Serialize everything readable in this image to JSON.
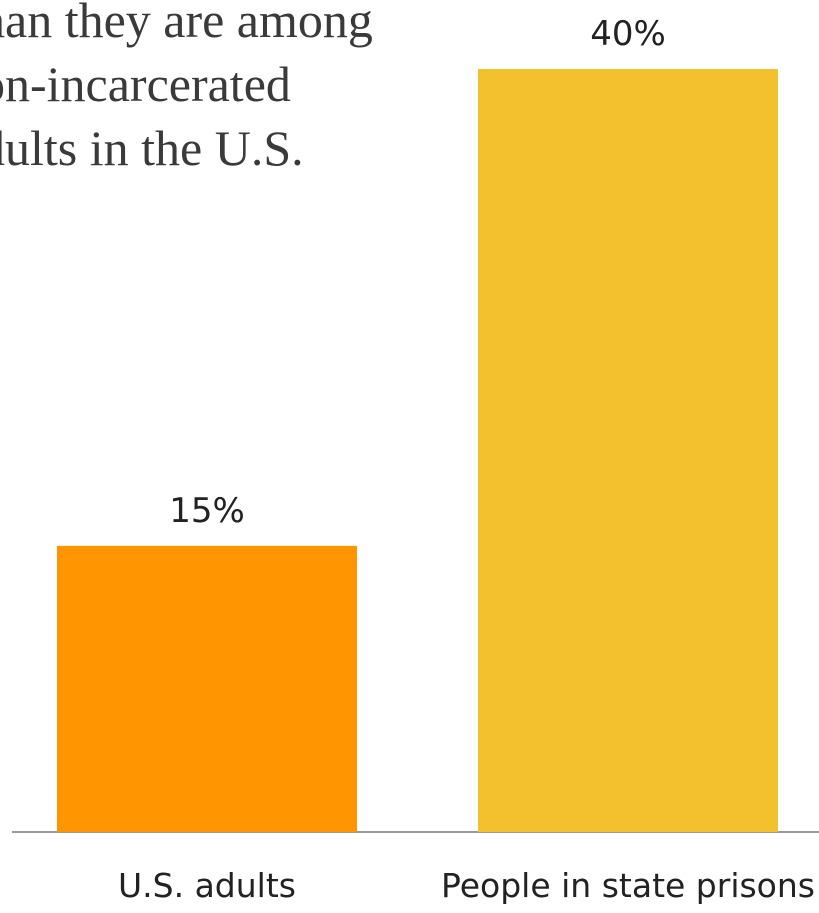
{
  "intro": {
    "lines": [
      "han they are among",
      "on-incarcerated",
      "dults in the U.S."
    ]
  },
  "chart_data": {
    "type": "bar",
    "categories": [
      "U.S. adults",
      "People in state prisons"
    ],
    "values": [
      15,
      40
    ],
    "value_labels": [
      "15%",
      "40%"
    ],
    "colors": [
      "#FF9500",
      "#F4C12E"
    ],
    "axis_color": "#999999",
    "ylim": [
      0,
      40
    ],
    "grid": false
  }
}
